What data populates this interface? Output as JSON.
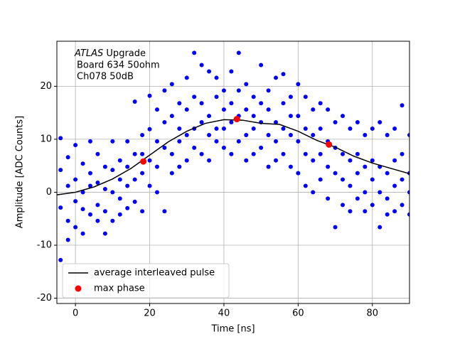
{
  "chart_data": {
    "type": "scatter",
    "annotations": [
      "ATLAS",
      "Upgrade",
      "Board 634 50ohm",
      "Ch078 50dB"
    ],
    "xlabel": "Time [ns]",
    "ylabel": "Amplitude [ADC Counts]",
    "xlim": [
      -5,
      90
    ],
    "ylim": [
      -21,
      28.5
    ],
    "xticks": [
      0,
      20,
      40,
      60,
      80
    ],
    "yticks": [
      -20,
      -10,
      0,
      10,
      20
    ],
    "grid": true,
    "legend": "lower left",
    "samples": {
      "color": "#0000ff",
      "x": [
        -4,
        -4,
        -4,
        -4,
        -2,
        -2,
        -2,
        -2,
        0,
        0,
        0,
        0,
        2,
        2,
        2,
        2,
        4,
        4,
        4,
        4,
        6,
        6,
        6,
        6,
        8,
        8,
        8,
        8,
        10,
        10,
        10,
        10,
        12,
        12,
        12,
        12,
        14,
        14,
        14,
        14,
        16,
        16,
        16,
        16,
        18,
        18,
        18,
        18,
        20,
        20,
        20,
        20,
        22,
        22,
        22,
        22,
        24,
        24,
        24,
        24,
        26,
        26,
        26,
        26,
        28,
        28,
        28,
        28,
        30,
        30,
        30,
        30,
        32,
        32,
        32,
        32,
        34,
        34,
        34,
        34,
        36,
        36,
        36,
        36,
        38,
        38,
        38,
        38,
        40,
        40,
        40,
        40,
        42,
        42,
        42,
        42,
        44,
        44,
        44,
        44,
        46,
        46,
        46,
        46,
        48,
        48,
        48,
        48,
        50,
        50,
        50,
        50,
        52,
        52,
        52,
        52,
        54,
        54,
        54,
        54,
        56,
        56,
        56,
        56,
        58,
        58,
        58,
        58,
        60,
        60,
        60,
        60,
        62,
        62,
        62,
        62,
        64,
        64,
        64,
        64,
        66,
        66,
        66,
        66,
        68,
        68,
        68,
        68,
        70,
        70,
        70,
        70,
        72,
        72,
        72,
        72,
        74,
        74,
        74,
        74,
        76,
        76,
        76,
        76,
        78,
        78,
        78,
        78,
        80,
        80,
        80,
        80,
        82,
        82,
        82,
        82,
        84,
        84,
        84,
        84,
        86,
        86,
        86,
        86,
        88,
        88,
        88,
        88,
        90,
        90,
        90,
        90
      ],
      "y": [
        10.2,
        4.2,
        -2.9,
        -12.8,
        6.6,
        1.2,
        -5.4,
        -9,
        8.9,
        2.4,
        -1.7,
        -6.6,
        5.4,
        0,
        -3.2,
        -7.8,
        9.6,
        3.6,
        1.2,
        -4.2,
        7.2,
        1.8,
        -2.4,
        -5.4,
        4.8,
        0.6,
        -3.6,
        -7.8,
        9.6,
        4.2,
        0,
        -5.4,
        6,
        2.4,
        -1.2,
        -4.2,
        9.6,
        4.8,
        1.2,
        -3,
        17.1,
        7.2,
        2.4,
        -1.8,
        10.8,
        7.2,
        3.6,
        -3.6,
        18.2,
        11.9,
        6,
        1.2,
        15.6,
        9.6,
        4.8,
        0,
        19.2,
        13.2,
        8.4,
        -3.6,
        20.4,
        14.4,
        7.2,
        3.6,
        16.8,
        12,
        9.6,
        4.8,
        21.6,
        15.6,
        10.8,
        6,
        26.3,
        18,
        12,
        8.4,
        24,
        16.8,
        13.2,
        7.2,
        22.8,
        14.4,
        10.8,
        6,
        21.6,
        18,
        12,
        9.6,
        19.2,
        15.6,
        12,
        8.4,
        22.8,
        16.8,
        13.2,
        7.2,
        26.3,
        19.2,
        14.4,
        9.6,
        20.4,
        15.6,
        10.8,
        6,
        18,
        14.4,
        12,
        7.2,
        24,
        16.8,
        13.2,
        8.4,
        19.2,
        15.6,
        10.8,
        4.8,
        21.6,
        13.2,
        9.6,
        6,
        22.3,
        16.8,
        12,
        7.2,
        18,
        14.4,
        10.8,
        4.8,
        20.4,
        14.4,
        9.6,
        3.6,
        18,
        12,
        7.2,
        1.2,
        15.6,
        10.8,
        6,
        0,
        16.8,
        12,
        7.2,
        2.4,
        15.6,
        9.6,
        4.8,
        -1.2,
        13.2,
        8.4,
        3.6,
        -6.6,
        14.4,
        7.2,
        2.4,
        -2.4,
        12,
        6,
        1.2,
        -3.6,
        13.2,
        7.2,
        3.6,
        -1.2,
        10.8,
        4.8,
        0,
        -3.6,
        12,
        6,
        2.4,
        -2.4,
        13.2,
        4.8,
        0,
        -6.6,
        10.8,
        3.6,
        -1.2,
        -4.2,
        12,
        6,
        1.2,
        -3.6,
        16.4,
        7.2,
        2.4,
        -2.4,
        10.8,
        3.6,
        0,
        -4.2
      ]
    },
    "series": [
      {
        "name": "average interleaved pulse",
        "kind": "line",
        "color": "#000000",
        "x": [
          -5,
          0,
          5,
          10,
          15,
          20,
          25,
          30,
          35,
          40,
          45,
          50,
          55,
          60,
          65,
          70,
          75,
          80,
          85,
          90
        ],
        "values": [
          -0.5,
          0,
          1,
          2.5,
          4.5,
          7,
          9.5,
          11.5,
          13,
          13.7,
          13.6,
          13,
          12.8,
          11.5,
          9.8,
          8.5,
          6.8,
          5.5,
          4.5,
          3.5
        ]
      },
      {
        "name": "max phase",
        "kind": "points",
        "color": "#ff0000",
        "x": [
          18.3,
          43.5,
          68.3
        ],
        "values": [
          5.8,
          13.8,
          9
        ]
      }
    ]
  }
}
